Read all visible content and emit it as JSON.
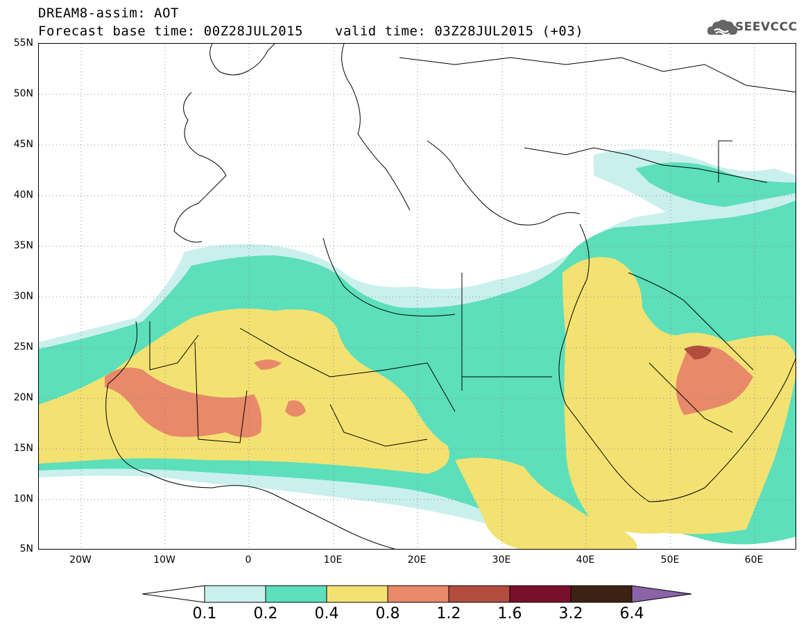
{
  "header": {
    "title": "DREAM8-assim: AOT",
    "base_time": "Forecast base time: 00Z28JUL2015",
    "valid_time": "valid time: 03Z28JUL2015 (+03)"
  },
  "logo": {
    "text": "SEEVCCC",
    "icon": "cloud-logo-icon"
  },
  "map": {
    "lat_labels": [
      "55N",
      "50N",
      "45N",
      "40N",
      "35N",
      "30N",
      "25N",
      "20N",
      "15N",
      "10N",
      "5N"
    ],
    "lon_labels": [
      "20W",
      "10W",
      "0",
      "10E",
      "20E",
      "30E",
      "40E",
      "50E",
      "60E"
    ],
    "lat_range": [
      5,
      55
    ],
    "lon_range": [
      -25,
      65
    ],
    "grid": "dotted"
  },
  "colorbar": {
    "labels": [
      "0.1",
      "0.2",
      "0.4",
      "0.8",
      "1.2",
      "1.6",
      "3.2",
      "6.4"
    ],
    "colors": [
      "#ffffff",
      "#c9f0ec",
      "#5cdfba",
      "#f3e272",
      "#e8896a",
      "#b24d3e",
      "#7a0f2c",
      "#3d2214",
      "#8b63a8"
    ]
  }
}
